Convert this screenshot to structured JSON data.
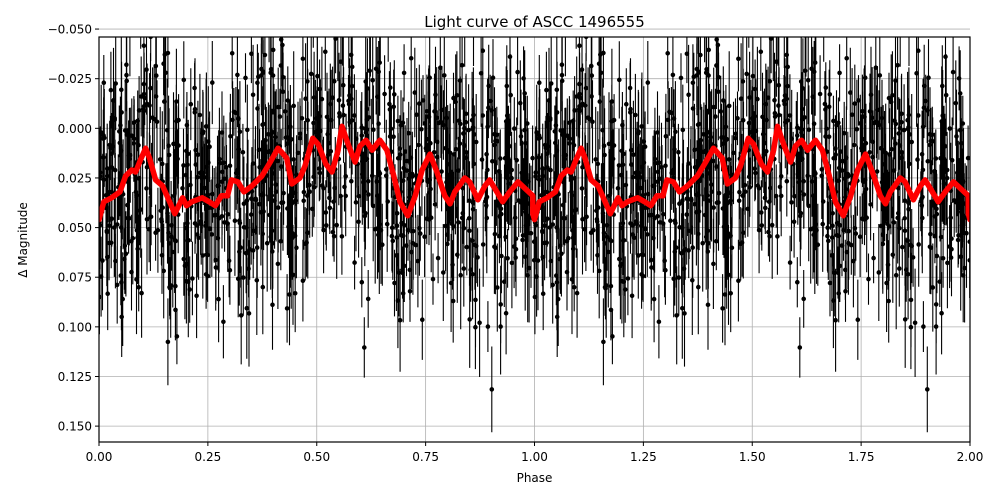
{
  "figure": {
    "title": "Light curve of ASCC 1496555",
    "xlabel": "Phase",
    "ylabel": "Δ Magnitude"
  },
  "chart_data": {
    "type": "scatter",
    "title": "Light curve of ASCC 1496555",
    "xlabel": "Phase",
    "ylabel": "Δ Magnitude",
    "xlim": [
      0.0,
      2.0
    ],
    "ylim": [
      0.158,
      -0.046
    ],
    "y_inverted": true,
    "grid": true,
    "legend": null,
    "xticks": [
      "0.00",
      "0.25",
      "0.50",
      "0.75",
      "1.00",
      "1.25",
      "1.50",
      "1.75",
      "2.00"
    ],
    "xtick_values": [
      0.0,
      0.25,
      0.5,
      0.75,
      1.0,
      1.25,
      1.5,
      1.75,
      2.0
    ],
    "yticks": [
      "−0.050",
      "−0.025",
      "0.000",
      "0.025",
      "0.050",
      "0.075",
      "0.100",
      "0.125",
      "0.150"
    ],
    "ytick_values": [
      -0.05,
      -0.025,
      0.0,
      0.025,
      0.05,
      0.075,
      0.1,
      0.125,
      0.15
    ],
    "series": [
      {
        "name": "observations",
        "style": "black points with vertical error bars",
        "color": "#000000",
        "description": "Dense phase-folded photometry repeated over two cycles; points scatter roughly from -0.05 to 0.16 around the model, typical error bar ±0.02",
        "count_per_cycle": 900,
        "scatter_sigma": 0.03,
        "errorbar_halfwidth": 0.02
      },
      {
        "name": "binned model",
        "style": "thick red line",
        "color": "#ff0000",
        "phase": [
          0.0,
          0.011,
          0.029,
          0.048,
          0.061,
          0.075,
          0.084,
          0.095,
          0.107,
          0.116,
          0.13,
          0.146,
          0.162,
          0.174,
          0.192,
          0.201,
          0.213,
          0.237,
          0.253,
          0.267,
          0.281,
          0.295,
          0.304,
          0.319,
          0.333,
          0.351,
          0.374,
          0.393,
          0.411,
          0.431,
          0.443,
          0.461,
          0.473,
          0.491,
          0.503,
          0.521,
          0.535,
          0.549,
          0.558,
          0.572,
          0.588,
          0.599,
          0.613,
          0.627,
          0.645,
          0.661,
          0.677,
          0.691,
          0.709,
          0.726,
          0.742,
          0.76,
          0.776,
          0.794,
          0.806,
          0.817,
          0.84,
          0.851,
          0.87,
          0.886,
          0.897,
          0.911,
          0.927,
          0.943,
          0.962,
          0.996,
          0.996,
          1.0
        ],
        "magnitude": [
          0.046,
          0.037,
          0.035,
          0.032,
          0.024,
          0.021,
          0.022,
          0.016,
          0.01,
          0.015,
          0.026,
          0.029,
          0.037,
          0.043,
          0.035,
          0.039,
          0.037,
          0.035,
          0.037,
          0.039,
          0.034,
          0.034,
          0.026,
          0.027,
          0.032,
          0.029,
          0.024,
          0.017,
          0.01,
          0.015,
          0.028,
          0.025,
          0.019,
          0.005,
          0.008,
          0.018,
          0.022,
          0.011,
          -0.001,
          0.008,
          0.017,
          0.009,
          0.006,
          0.011,
          0.006,
          0.011,
          0.024,
          0.037,
          0.044,
          0.034,
          0.021,
          0.013,
          0.022,
          0.034,
          0.038,
          0.032,
          0.025,
          0.027,
          0.036,
          0.029,
          0.026,
          0.031,
          0.037,
          0.032,
          0.027,
          0.034,
          0.043,
          0.046
        ]
      }
    ]
  }
}
